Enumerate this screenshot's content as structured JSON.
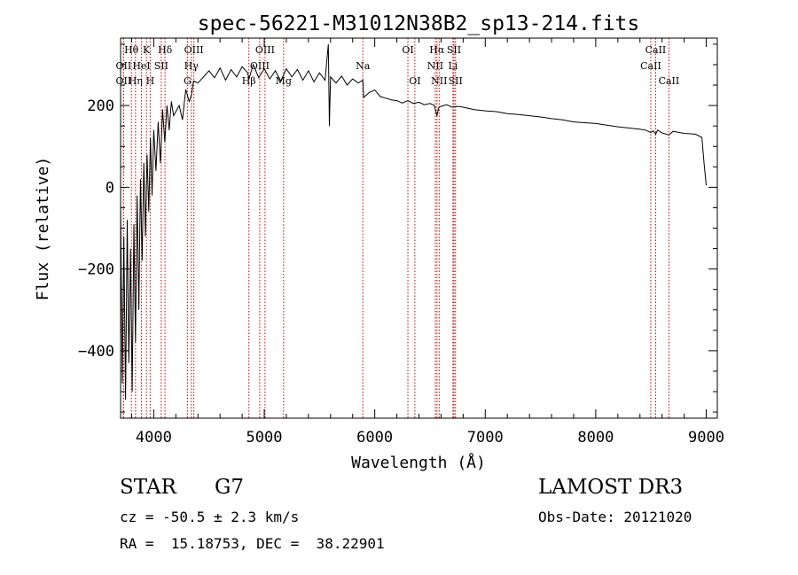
{
  "chart_data": {
    "type": "line",
    "title": "spec-56221-M31012N38B2_sp13-214.fits",
    "xlabel": "Wavelength (Å)",
    "ylabel": "Flux (relative)",
    "xlim": [
      3700,
      9100
    ],
    "ylim": [
      -565,
      365
    ],
    "xticks": [
      4000,
      5000,
      6000,
      7000,
      8000,
      9000
    ],
    "yticks": [
      -400,
      -200,
      0,
      200
    ],
    "x_minor_step": 200,
    "y_minor_step": 50,
    "series": [
      {
        "name": "flux",
        "x": [
          3700,
          3715,
          3730,
          3745,
          3760,
          3775,
          3790,
          3805,
          3820,
          3835,
          3850,
          3865,
          3880,
          3895,
          3910,
          3925,
          3940,
          3955,
          3970,
          3985,
          4000,
          4020,
          4040,
          4060,
          4080,
          4100,
          4120,
          4140,
          4160,
          4180,
          4200,
          4230,
          4260,
          4290,
          4320,
          4340,
          4360,
          4400,
          4450,
          4500,
          4550,
          4600,
          4650,
          4700,
          4750,
          4800,
          4850,
          4862,
          4900,
          4950,
          5000,
          5050,
          5100,
          5150,
          5200,
          5250,
          5300,
          5350,
          5400,
          5450,
          5500,
          5550,
          5580,
          5590,
          5600,
          5650,
          5700,
          5750,
          5800,
          5850,
          5892,
          5900,
          5950,
          6000,
          6050,
          6100,
          6150,
          6200,
          6250,
          6300,
          6350,
          6400,
          6450,
          6500,
          6540,
          6563,
          6580,
          6600,
          6650,
          6700,
          6750,
          6800,
          6900,
          7000,
          7100,
          7200,
          7300,
          7400,
          7500,
          7600,
          7700,
          7800,
          7900,
          8000,
          8100,
          8200,
          8300,
          8400,
          8450,
          8498,
          8520,
          8542,
          8560,
          8600,
          8662,
          8700,
          8800,
          8900,
          8960,
          8980,
          9000
        ],
        "values": [
          -40,
          -480,
          -120,
          -520,
          -80,
          -430,
          -150,
          -500,
          -90,
          -380,
          -20,
          -300,
          20,
          -180,
          60,
          -120,
          80,
          -60,
          120,
          -20,
          140,
          40,
          160,
          60,
          190,
          110,
          200,
          140,
          210,
          175,
          185,
          200,
          165,
          240,
          210,
          225,
          260,
          255,
          270,
          285,
          268,
          292,
          262,
          288,
          270,
          295,
          280,
          265,
          300,
          268,
          290,
          265,
          285,
          260,
          290,
          270,
          288,
          262,
          285,
          258,
          280,
          262,
          350,
          150,
          270,
          255,
          272,
          250,
          265,
          255,
          262,
          220,
          232,
          238,
          222,
          218,
          214,
          212,
          206,
          212,
          205,
          208,
          202,
          205,
          200,
          175,
          195,
          198,
          202,
          196,
          198,
          196,
          190,
          187,
          185,
          180,
          178,
          175,
          172,
          168,
          165,
          160,
          158,
          156,
          152,
          148,
          145,
          142,
          140,
          134,
          138,
          130,
          140,
          133,
          128,
          137,
          132,
          130,
          122,
          60,
          5
        ]
      }
    ],
    "lines": [
      {
        "label": "Hθ",
        "wavelength": 3798,
        "row": 0
      },
      {
        "label": "OII",
        "wavelength": 3727,
        "row": 1
      },
      {
        "label": "OII",
        "wavelength": 3727,
        "row": 2
      },
      {
        "label": "Hη",
        "wavelength": 3835,
        "row": 2
      },
      {
        "label": "K",
        "wavelength": 3934,
        "row": 0
      },
      {
        "label": "HeI",
        "wavelength": 3889,
        "row": 1
      },
      {
        "label": "H",
        "wavelength": 3968,
        "row": 2
      },
      {
        "label": "SII",
        "wavelength": 4068,
        "row": 1
      },
      {
        "label": "Hδ",
        "wavelength": 4102,
        "row": 0
      },
      {
        "label": "OIII",
        "wavelength": 4363,
        "row": 0
      },
      {
        "label": "Hγ",
        "wavelength": 4340,
        "row": 1
      },
      {
        "label": "G",
        "wavelength": 4305,
        "row": 2
      },
      {
        "label": "OIII",
        "wavelength": 5007,
        "row": 0
      },
      {
        "label": "OIII",
        "wavelength": 4959,
        "row": 1
      },
      {
        "label": "Hβ",
        "wavelength": 4861,
        "row": 2
      },
      {
        "label": "Mg",
        "wavelength": 5175,
        "row": 2
      },
      {
        "label": "Na",
        "wavelength": 5892,
        "row": 1
      },
      {
        "label": "OI",
        "wavelength": 6300,
        "row": 0
      },
      {
        "label": "OI",
        "wavelength": 6363,
        "row": 2
      },
      {
        "label": "Hα",
        "wavelength": 6563,
        "row": 0
      },
      {
        "label": "NII",
        "wavelength": 6548,
        "row": 1
      },
      {
        "label": "NII",
        "wavelength": 6583,
        "row": 2
      },
      {
        "label": "SII",
        "wavelength": 6717,
        "row": 0
      },
      {
        "label": "Li",
        "wavelength": 6708,
        "row": 1
      },
      {
        "label": "SII",
        "wavelength": 6731,
        "row": 2
      },
      {
        "label": "CaII",
        "wavelength": 8542,
        "row": 0
      },
      {
        "label": "CaII",
        "wavelength": 8498,
        "row": 1
      },
      {
        "label": "CaII",
        "wavelength": 8662,
        "row": 2
      }
    ]
  },
  "info": {
    "class": "STAR",
    "subclass": "G7",
    "survey": "LAMOST DR3",
    "cz": "cz = -50.5 ± 2.3 km/s",
    "obs_date": "Obs-Date: 20121020",
    "coords": "RA =  15.18753, DEC =  38.22901"
  },
  "colors": {
    "line_marker": "#cc0000",
    "spectrum": "#000000"
  }
}
